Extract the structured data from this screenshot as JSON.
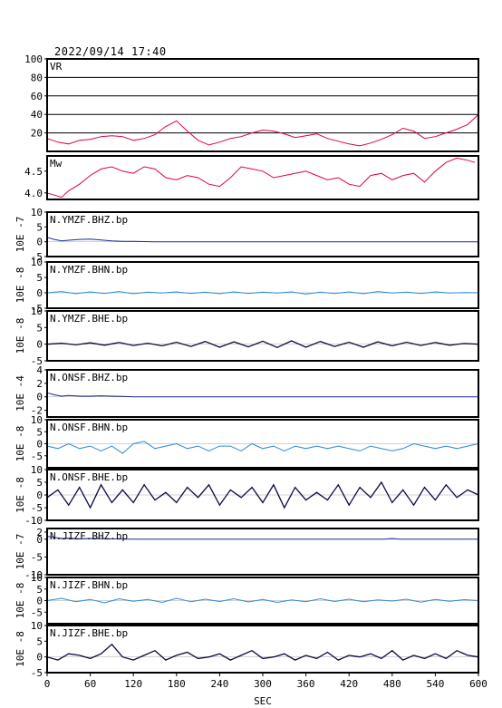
{
  "header": {
    "timestamp": "2022/09/14 17:40"
  },
  "colors": {
    "fit": "#e0003c",
    "bhz": "#1a2a9a",
    "bhn": "#2c8ad8",
    "bhe": "#0a0a40",
    "axis": "#000000"
  },
  "chart_data": {
    "type": "line",
    "xlabel": "SEC",
    "xlim": [
      0,
      600
    ],
    "xticks": [
      "0",
      "60",
      "120",
      "180",
      "240",
      "300",
      "360",
      "420",
      "480",
      "540",
      "600"
    ],
    "panels": [
      {
        "name": "VR",
        "ylim": [
          0,
          100
        ],
        "yticks": [
          "20",
          "40",
          "60",
          "80",
          "100"
        ],
        "grid": true,
        "ylabel": "",
        "kind": "fit",
        "x": [
          0,
          15,
          30,
          45,
          60,
          75,
          90,
          105,
          120,
          135,
          150,
          165,
          180,
          195,
          210,
          225,
          240,
          255,
          270,
          285,
          300,
          315,
          330,
          345,
          360,
          375,
          390,
          405,
          420,
          435,
          450,
          465,
          480,
          495,
          510,
          525,
          540,
          555,
          570,
          585,
          600
        ],
        "y": [
          14,
          10,
          8,
          12,
          13,
          16,
          17,
          16,
          12,
          14,
          18,
          27,
          33,
          22,
          12,
          7,
          10,
          14,
          16,
          20,
          23,
          22,
          19,
          15,
          17,
          19,
          14,
          11,
          8,
          6,
          9,
          13,
          18,
          25,
          22,
          14,
          16,
          20,
          24,
          29,
          40
        ]
      },
      {
        "name": "Mw",
        "ylim": [
          3.85,
          4.85
        ],
        "yticks": [
          "4.0",
          "4.5"
        ],
        "grid": false,
        "ylabel": "",
        "kind": "fit",
        "x": [
          0,
          10,
          20,
          30,
          45,
          60,
          75,
          90,
          105,
          120,
          135,
          150,
          165,
          180,
          195,
          210,
          225,
          240,
          255,
          270,
          285,
          300,
          315,
          330,
          345,
          360,
          375,
          390,
          405,
          420,
          435,
          450,
          465,
          480,
          495,
          510,
          525,
          540,
          555,
          570,
          585,
          595
        ],
        "y": [
          4.0,
          3.95,
          3.9,
          4.05,
          4.2,
          4.4,
          4.55,
          4.6,
          4.5,
          4.45,
          4.6,
          4.55,
          4.35,
          4.3,
          4.4,
          4.35,
          4.2,
          4.15,
          4.35,
          4.6,
          4.55,
          4.5,
          4.35,
          4.4,
          4.45,
          4.5,
          4.4,
          4.3,
          4.35,
          4.2,
          4.15,
          4.4,
          4.45,
          4.3,
          4.4,
          4.45,
          4.25,
          4.5,
          4.7,
          4.8,
          4.75,
          4.7
        ]
      },
      {
        "name": "N.YMZF.BHZ.bp",
        "ylim": [
          -5,
          10
        ],
        "yticks": [
          "-5",
          "0",
          "5",
          "10"
        ],
        "ylabel": "10E -7",
        "kind": "bhz",
        "x": [
          0,
          10,
          20,
          30,
          45,
          60,
          75,
          90,
          105,
          120,
          150,
          200,
          300,
          400,
          500,
          600
        ],
        "y": [
          1.5,
          0.8,
          0.3,
          0.5,
          0.8,
          0.9,
          0.6,
          0.3,
          0.1,
          0.1,
          0,
          0,
          0,
          0,
          0,
          0
        ]
      },
      {
        "name": "N.YMZF.BHN.bp",
        "ylim": [
          -5,
          10
        ],
        "yticks": [
          "-5",
          "0",
          "5",
          "10"
        ],
        "ylabel": "10E -8",
        "kind": "bhn",
        "x": [
          0,
          20,
          40,
          60,
          80,
          100,
          120,
          140,
          160,
          180,
          200,
          220,
          240,
          260,
          280,
          300,
          320,
          340,
          360,
          380,
          400,
          420,
          440,
          460,
          480,
          500,
          520,
          540,
          560,
          580,
          600
        ],
        "y": [
          0,
          0.4,
          -0.3,
          0.3,
          -0.2,
          0.4,
          -0.3,
          0.2,
          -0.1,
          0.3,
          -0.2,
          0.2,
          -0.3,
          0.3,
          -0.2,
          0.2,
          -0.1,
          0.3,
          -0.4,
          0.2,
          -0.2,
          0.3,
          -0.3,
          0.4,
          -0.1,
          0.2,
          -0.2,
          0.3,
          -0.1,
          0.1,
          0
        ]
      },
      {
        "name": "N.YMZF.BHE.bp",
        "ylim": [
          -5,
          10
        ],
        "yticks": [
          "-5",
          "0",
          "5",
          "10"
        ],
        "ylabel": "10E -8",
        "kind": "bhe",
        "x": [
          0,
          20,
          40,
          60,
          80,
          100,
          120,
          140,
          160,
          180,
          200,
          220,
          240,
          260,
          280,
          300,
          320,
          340,
          360,
          380,
          400,
          420,
          440,
          460,
          480,
          500,
          520,
          540,
          560,
          580,
          600
        ],
        "y": [
          0,
          0.3,
          -0.2,
          0.4,
          -0.3,
          0.5,
          -0.4,
          0.3,
          -0.5,
          0.6,
          -0.7,
          0.8,
          -0.9,
          0.7,
          -0.8,
          0.9,
          -1.0,
          1.0,
          -0.9,
          0.8,
          -0.7,
          0.6,
          -0.9,
          0.7,
          -0.5,
          0.6,
          -0.4,
          0.5,
          -0.3,
          0.2,
          0
        ]
      },
      {
        "name": "N.ONSF.BHZ.bp",
        "ylim": [
          -3,
          4
        ],
        "yticks": [
          "-2",
          "0",
          "2",
          "4"
        ],
        "ylabel": "10E -4",
        "kind": "bhz",
        "x": [
          0,
          10,
          20,
          30,
          45,
          60,
          75,
          90,
          105,
          120,
          150,
          200,
          300,
          400,
          500,
          600
        ],
        "y": [
          0.6,
          0.3,
          0.1,
          0.2,
          0.1,
          0.1,
          0.15,
          0.1,
          0.05,
          0,
          0,
          0,
          0,
          0,
          0,
          0
        ]
      },
      {
        "name": "N.ONSF.BHN.bp",
        "ylim": [
          -10,
          10
        ],
        "yticks": [
          "-5",
          "0",
          "5",
          "10"
        ],
        "ylabel": "10E -8",
        "kind": "bhn",
        "x": [
          0,
          15,
          30,
          45,
          60,
          75,
          90,
          105,
          120,
          135,
          150,
          165,
          180,
          195,
          210,
          225,
          240,
          255,
          270,
          285,
          300,
          315,
          330,
          345,
          360,
          375,
          390,
          405,
          420,
          435,
          450,
          465,
          480,
          495,
          510,
          525,
          540,
          555,
          570,
          585,
          600
        ],
        "y": [
          -1,
          -2,
          0,
          -2,
          -1,
          -3,
          -1,
          -4,
          0,
          1,
          -2,
          -1,
          0,
          -2,
          -1,
          -3,
          -1,
          -1,
          -3,
          0,
          -2,
          -1,
          -3,
          -1,
          -2,
          -1,
          -2,
          -1,
          -2,
          -3,
          -1,
          -2,
          -3,
          -2,
          0,
          -1,
          -2,
          -1,
          -2,
          -1,
          0
        ]
      },
      {
        "name": "N.ONSF.BHE.bp",
        "ylim": [
          -10,
          10
        ],
        "yticks": [
          "-10",
          "-5",
          "0",
          "5",
          "10"
        ],
        "ylabel": "10E -8",
        "kind": "bhe",
        "x": [
          0,
          15,
          30,
          45,
          60,
          75,
          90,
          105,
          120,
          135,
          150,
          165,
          180,
          195,
          210,
          225,
          240,
          255,
          270,
          285,
          300,
          315,
          330,
          345,
          360,
          375,
          390,
          405,
          420,
          435,
          450,
          465,
          480,
          495,
          510,
          525,
          540,
          555,
          570,
          585,
          600
        ],
        "y": [
          -1,
          2,
          -4,
          3,
          -5,
          4,
          -3,
          2,
          -3,
          4,
          -2,
          1,
          -3,
          3,
          -1,
          4,
          -4,
          2,
          -1,
          3,
          -3,
          4,
          -5,
          3,
          -2,
          1,
          -2,
          4,
          -4,
          3,
          -1,
          5,
          -3,
          2,
          -4,
          3,
          -2,
          4,
          -1,
          2,
          0
        ]
      },
      {
        "name": "N.JIZF.BHZ.bp",
        "ylim": [
          -10,
          3
        ],
        "yticks": [
          "-10",
          "-5",
          "0",
          "2"
        ],
        "ylabel": "10E -7",
        "kind": "bhz",
        "x": [
          0,
          10,
          20,
          30,
          45,
          60,
          75,
          90,
          105,
          120,
          150,
          200,
          300,
          400,
          470,
          480,
          490,
          500,
          600
        ],
        "y": [
          0.8,
          0.5,
          0.2,
          0.3,
          0.1,
          0.2,
          0.2,
          0.1,
          0.05,
          0,
          0,
          0,
          0,
          0,
          0,
          0.2,
          0,
          0,
          0
        ]
      },
      {
        "name": "N.JIZF.BHN.bp",
        "ylim": [
          -10,
          10
        ],
        "yticks": [
          "-5",
          "0",
          "5",
          "10"
        ],
        "ylabel": "10E -8",
        "kind": "bhn",
        "x": [
          0,
          20,
          40,
          60,
          80,
          100,
          120,
          140,
          160,
          180,
          200,
          220,
          240,
          260,
          280,
          300,
          320,
          340,
          360,
          380,
          400,
          420,
          440,
          460,
          480,
          500,
          520,
          540,
          560,
          580,
          600
        ],
        "y": [
          0,
          1,
          -0.5,
          0.5,
          -1,
          0.8,
          -0.3,
          0.5,
          -0.8,
          1,
          -0.5,
          0.6,
          -0.4,
          0.8,
          -0.6,
          0.5,
          -0.8,
          0.3,
          -0.5,
          0.8,
          -0.4,
          0.6,
          -0.5,
          0.3,
          -0.2,
          0.6,
          -0.7,
          0.5,
          -0.3,
          0.4,
          0
        ]
      },
      {
        "name": "N.JIZF.BHE.bp",
        "ylim": [
          -5,
          10
        ],
        "yticks": [
          "-5",
          "0",
          "5",
          "10"
        ],
        "ylabel": "10E -8",
        "kind": "bhe",
        "x": [
          0,
          15,
          30,
          45,
          60,
          75,
          90,
          105,
          120,
          135,
          150,
          165,
          180,
          195,
          210,
          225,
          240,
          255,
          270,
          285,
          300,
          315,
          330,
          345,
          360,
          375,
          390,
          405,
          420,
          435,
          450,
          465,
          480,
          495,
          510,
          525,
          540,
          555,
          570,
          585,
          600
        ],
        "y": [
          0,
          -1,
          1,
          0.5,
          -0.5,
          1,
          4,
          0,
          -1,
          0.5,
          2,
          -1,
          0.5,
          1.5,
          -0.5,
          0,
          1,
          -1,
          0.5,
          2,
          -0.5,
          0,
          1,
          -1,
          0.5,
          -0.5,
          1.5,
          -1,
          0.5,
          0,
          1,
          -0.5,
          2,
          -1,
          0.5,
          -0.5,
          1,
          -0.5,
          2,
          0.5,
          0
        ]
      }
    ]
  }
}
